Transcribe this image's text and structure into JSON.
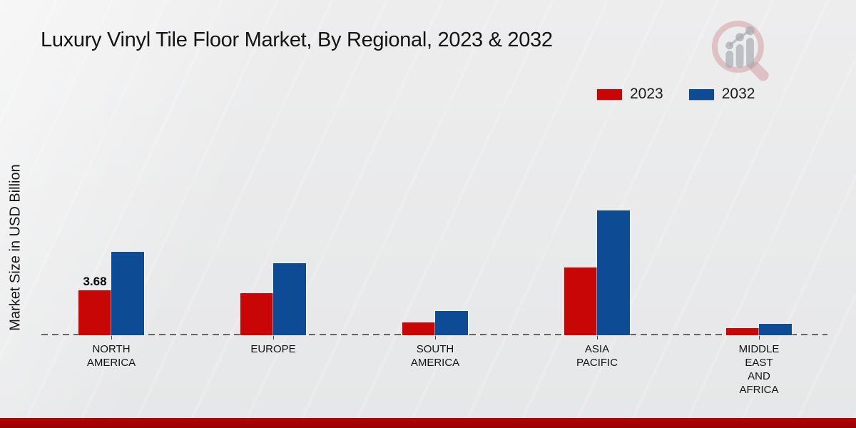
{
  "page": {
    "footer_bar_color": "#b20505",
    "background_color": "#e9eaeb"
  },
  "icons": {
    "watermark": "magnifier-bar-chart-logo-watermark"
  },
  "chart_data": {
    "type": "bar",
    "title": "Luxury Vinyl Tile Floor Market, By Regional, 2023 & 2032",
    "xlabel": "",
    "ylabel": "Market Size in USD Billion",
    "categories": [
      "NORTH AMERICA",
      "EUROPE",
      "SOUTH AMERICA",
      "ASIA PACIFIC",
      "MIDDLE EAST AND AFRICA"
    ],
    "category_label_lines": [
      [
        "NORTH",
        "AMERICA"
      ],
      [
        "EUROPE"
      ],
      [
        "SOUTH",
        "AMERICA"
      ],
      [
        "ASIA",
        "PACIFIC"
      ],
      [
        "MIDDLE",
        "EAST",
        "AND",
        "AFRICA"
      ]
    ],
    "series": [
      {
        "name": "2023",
        "color": "#c90606",
        "values": [
          3.68,
          3.45,
          1.05,
          5.55,
          0.6
        ]
      },
      {
        "name": "2032",
        "color": "#0d4c94",
        "values": [
          6.85,
          5.9,
          2.0,
          10.2,
          0.95
        ]
      }
    ],
    "data_labels": [
      {
        "series": "2023",
        "category": "NORTH AMERICA",
        "text": "3.68"
      }
    ],
    "ylim": [
      0,
      11
    ],
    "grid": false,
    "legend_position": "top-right",
    "baseline_style": "dashed",
    "y_axis_ticks_visible": false
  }
}
